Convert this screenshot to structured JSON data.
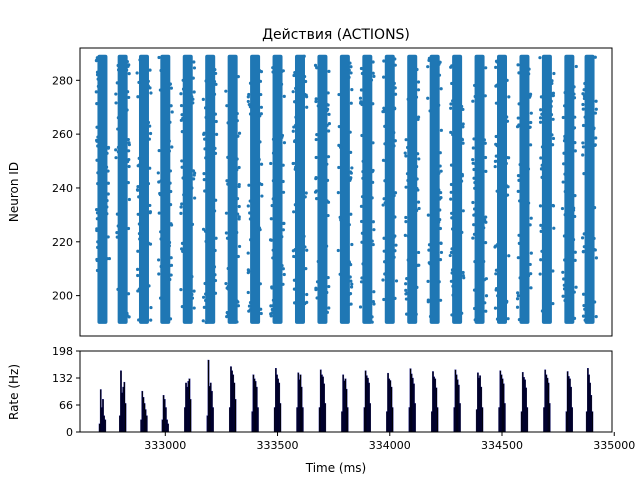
{
  "chart_data": [
    {
      "type": "scatter",
      "title": "Действия (ACTIONS)",
      "xlabel": "",
      "ylabel": "Neuron ID",
      "xlim": [
        332620,
        334990
      ],
      "ylim": [
        185,
        292
      ],
      "y_ticks": [
        "200",
        "220",
        "240",
        "260",
        "280"
      ],
      "y_tick_values": [
        200,
        220,
        240,
        260,
        280
      ],
      "neuron_range": [
        190,
        289
      ],
      "burst_centers": [
        332720,
        332810,
        332905,
        333000,
        333100,
        333200,
        333300,
        333400,
        333500,
        333600,
        333700,
        333800,
        333900,
        334000,
        334100,
        334200,
        334300,
        334400,
        334500,
        334600,
        334700,
        334800,
        334890
      ],
      "color": "#1f77b4",
      "grid": false
    },
    {
      "type": "bar",
      "title": "",
      "xlabel": "Time (ms)",
      "ylabel": "Rate (Hz)",
      "xlim": [
        332620,
        334990
      ],
      "ylim": [
        0,
        198
      ],
      "y_ticks": [
        "0",
        "66",
        "132",
        "198"
      ],
      "y_tick_values": [
        0,
        66,
        132,
        198
      ],
      "x_ticks": [
        "333000",
        "333500",
        "334000",
        "334500",
        "335000"
      ],
      "x_tick_values": [
        333000,
        333500,
        334000,
        334500,
        335000
      ],
      "bar_color": "#000000",
      "edge_color": "#00008b",
      "bursts": [
        {
          "center": 332720,
          "values": [
            20,
            104,
            60,
            80,
            40,
            30
          ]
        },
        {
          "center": 332810,
          "values": [
            40,
            150,
            96,
            110,
            122,
            70
          ]
        },
        {
          "center": 332905,
          "values": [
            30,
            100,
            85,
            70,
            55,
            40
          ]
        },
        {
          "center": 333000,
          "values": [
            30,
            90,
            80,
            60,
            30,
            20
          ]
        },
        {
          "center": 333100,
          "values": [
            60,
            120,
            110,
            124,
            130,
            80
          ]
        },
        {
          "center": 333200,
          "values": [
            40,
            176,
            112,
            120,
            100,
            60
          ]
        },
        {
          "center": 333300,
          "values": [
            60,
            160,
            150,
            140,
            120,
            80
          ]
        },
        {
          "center": 333400,
          "values": [
            50,
            140,
            130,
            124,
            110,
            60
          ]
        },
        {
          "center": 333500,
          "values": [
            60,
            156,
            140,
            130,
            120,
            70
          ]
        },
        {
          "center": 333600,
          "values": [
            60,
            145,
            128,
            140,
            110,
            60
          ]
        },
        {
          "center": 333700,
          "values": [
            60,
            152,
            140,
            135,
            118,
            70
          ]
        },
        {
          "center": 333800,
          "values": [
            50,
            140,
            125,
            130,
            105,
            60
          ]
        },
        {
          "center": 333900,
          "values": [
            60,
            150,
            138,
            132,
            120,
            70
          ]
        },
        {
          "center": 334000,
          "values": [
            50,
            144,
            130,
            126,
            110,
            60
          ]
        },
        {
          "center": 334100,
          "values": [
            60,
            155,
            142,
            132,
            118,
            70
          ]
        },
        {
          "center": 334200,
          "values": [
            50,
            148,
            135,
            130,
            108,
            60
          ]
        },
        {
          "center": 334300,
          "values": [
            60,
            152,
            140,
            128,
            115,
            70
          ]
        },
        {
          "center": 334400,
          "values": [
            55,
            145,
            132,
            138,
            110,
            60
          ]
        },
        {
          "center": 334500,
          "values": [
            60,
            150,
            140,
            130,
            118,
            70
          ]
        },
        {
          "center": 334600,
          "values": [
            50,
            146,
            134,
            128,
            108,
            60
          ]
        },
        {
          "center": 334700,
          "values": [
            60,
            152,
            140,
            132,
            120,
            70
          ]
        },
        {
          "center": 334800,
          "values": [
            50,
            148,
            136,
            130,
            110,
            60
          ]
        },
        {
          "center": 334890,
          "values": [
            50,
            156,
            140,
            120,
            90,
            50
          ]
        }
      ]
    }
  ]
}
